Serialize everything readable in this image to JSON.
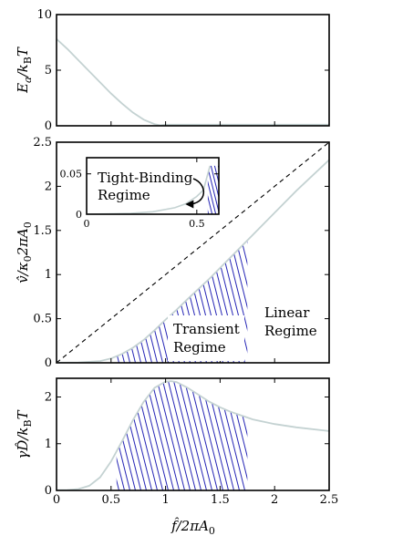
{
  "colors": {
    "curve": "#c4d2d2",
    "hatch": "#2525b5",
    "frame": "#000000",
    "dashed": "#000000",
    "arrow": "#000000"
  },
  "chart_data": [
    {
      "id": "top",
      "type": "line",
      "ylabel": "E_a/k_BT",
      "xlim": [
        0,
        2.5
      ],
      "ylim": [
        0,
        10
      ],
      "yticks": [
        "0",
        "5",
        "10"
      ],
      "series": [
        {
          "x": [
            0,
            0.1,
            0.2,
            0.3,
            0.4,
            0.5,
            0.6,
            0.7,
            0.8,
            0.9,
            0.95,
            1.0,
            1.5,
            2.0,
            2.5
          ],
          "y": [
            7.8,
            6.9,
            5.9,
            4.9,
            3.9,
            2.9,
            2.0,
            1.2,
            0.55,
            0.15,
            0.05,
            0.1,
            0.1,
            0.1,
            0.1
          ]
        }
      ]
    },
    {
      "id": "middle",
      "type": "line",
      "ylabel": "v̂/κ₀2πA₀",
      "xlim": [
        0,
        2.5
      ],
      "ylim": [
        0,
        2.5
      ],
      "yticks": [
        "0",
        "0.5",
        "1",
        "1.5",
        "2",
        "2.5"
      ],
      "series": [
        {
          "style": "dashed",
          "x": [
            0,
            2.5
          ],
          "y": [
            0,
            2.5
          ]
        },
        {
          "x": [
            0,
            0.2,
            0.4,
            0.5,
            0.6,
            0.7,
            0.8,
            0.9,
            1.0,
            1.1,
            1.2,
            1.4,
            1.6,
            1.8,
            2.0,
            2.2,
            2.5
          ],
          "y": [
            0,
            0.003,
            0.02,
            0.05,
            0.1,
            0.17,
            0.26,
            0.37,
            0.49,
            0.6,
            0.72,
            0.95,
            1.2,
            1.45,
            1.7,
            1.95,
            2.3
          ]
        }
      ],
      "hatched_region": {
        "x_from": 0.55,
        "x_to": 1.75
      },
      "annotations": [
        {
          "id": "linear-regime",
          "lines": [
            "Linear",
            "Regime"
          ]
        },
        {
          "id": "transient-regime",
          "lines": [
            "Transient",
            "Regime"
          ]
        }
      ],
      "inset": {
        "xlim": [
          0,
          0.6
        ],
        "ylim": [
          0,
          0.07
        ],
        "xticks": [
          "0",
          "0.5"
        ],
        "yticks": [
          "0",
          "0.05"
        ],
        "label_lines": [
          "Tight-Binding",
          "Regime"
        ],
        "series": [
          {
            "x": [
              0,
              0.2,
              0.3,
              0.4,
              0.45,
              0.5,
              0.53,
              0.56
            ],
            "y": [
              0,
              0.001,
              0.003,
              0.008,
              0.013,
              0.022,
              0.03,
              0.06
            ]
          }
        ],
        "hatched_region": {
          "x_from": 0.55,
          "x_to": 0.6
        }
      }
    },
    {
      "id": "bottom",
      "type": "line",
      "ylabel": "γD̂/k_BT",
      "xlabel": "f̂/2πA₀",
      "xlim": [
        0,
        2.5
      ],
      "ylim": [
        0,
        2.4
      ],
      "xticks": [
        "0",
        "0.5",
        "1",
        "1.5",
        "2",
        "2.5"
      ],
      "yticks": [
        "0",
        "1",
        "2"
      ],
      "series": [
        {
          "x": [
            0,
            0.1,
            0.2,
            0.3,
            0.4,
            0.5,
            0.6,
            0.7,
            0.8,
            0.9,
            1.0,
            1.05,
            1.1,
            1.2,
            1.3,
            1.4,
            1.5,
            1.6,
            1.8,
            2.0,
            2.2,
            2.5
          ],
          "y": [
            0.005,
            0.01,
            0.03,
            0.1,
            0.28,
            0.62,
            1.05,
            1.5,
            1.9,
            2.2,
            2.33,
            2.34,
            2.32,
            2.2,
            2.05,
            1.9,
            1.78,
            1.68,
            1.52,
            1.42,
            1.35,
            1.27
          ]
        }
      ],
      "hatched_region": {
        "x_from": 0.55,
        "x_to": 1.75
      }
    }
  ]
}
